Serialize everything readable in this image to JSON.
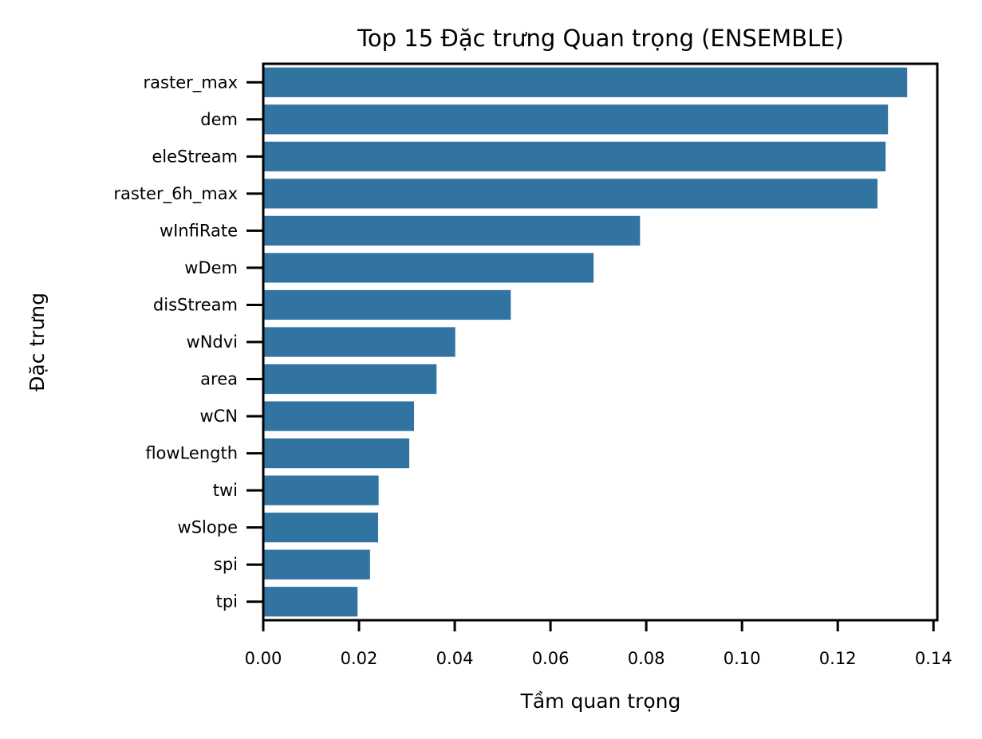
{
  "chart_data": {
    "type": "bar",
    "orientation": "horizontal",
    "title": "Top 15 Đặc trưng Quan trọng (ENSEMBLE)",
    "xlabel": "Tầm quan trọng",
    "ylabel": "Đặc trưng",
    "categories": [
      "raster_max",
      "dem",
      "eleStream",
      "raster_6h_max",
      "wInfiRate",
      "wDem",
      "disStream",
      "wNdvi",
      "area",
      "wCN",
      "flowLength",
      "twi",
      "wSlope",
      "spi",
      "tpi"
    ],
    "values": [
      0.1345,
      0.1305,
      0.13,
      0.1283,
      0.0787,
      0.069,
      0.0517,
      0.0401,
      0.0362,
      0.0315,
      0.0305,
      0.0241,
      0.024,
      0.0223,
      0.0197
    ],
    "xlim": [
      0,
      0.1408
    ],
    "xticks": [
      "0.00",
      "0.02",
      "0.04",
      "0.06",
      "0.08",
      "0.10",
      "0.12",
      "0.14"
    ],
    "xtick_values": [
      0,
      0.02,
      0.04,
      0.06,
      0.08,
      0.1,
      0.12,
      0.14
    ],
    "bar_color": "#3274a1",
    "grid": false,
    "legend": "none"
  }
}
